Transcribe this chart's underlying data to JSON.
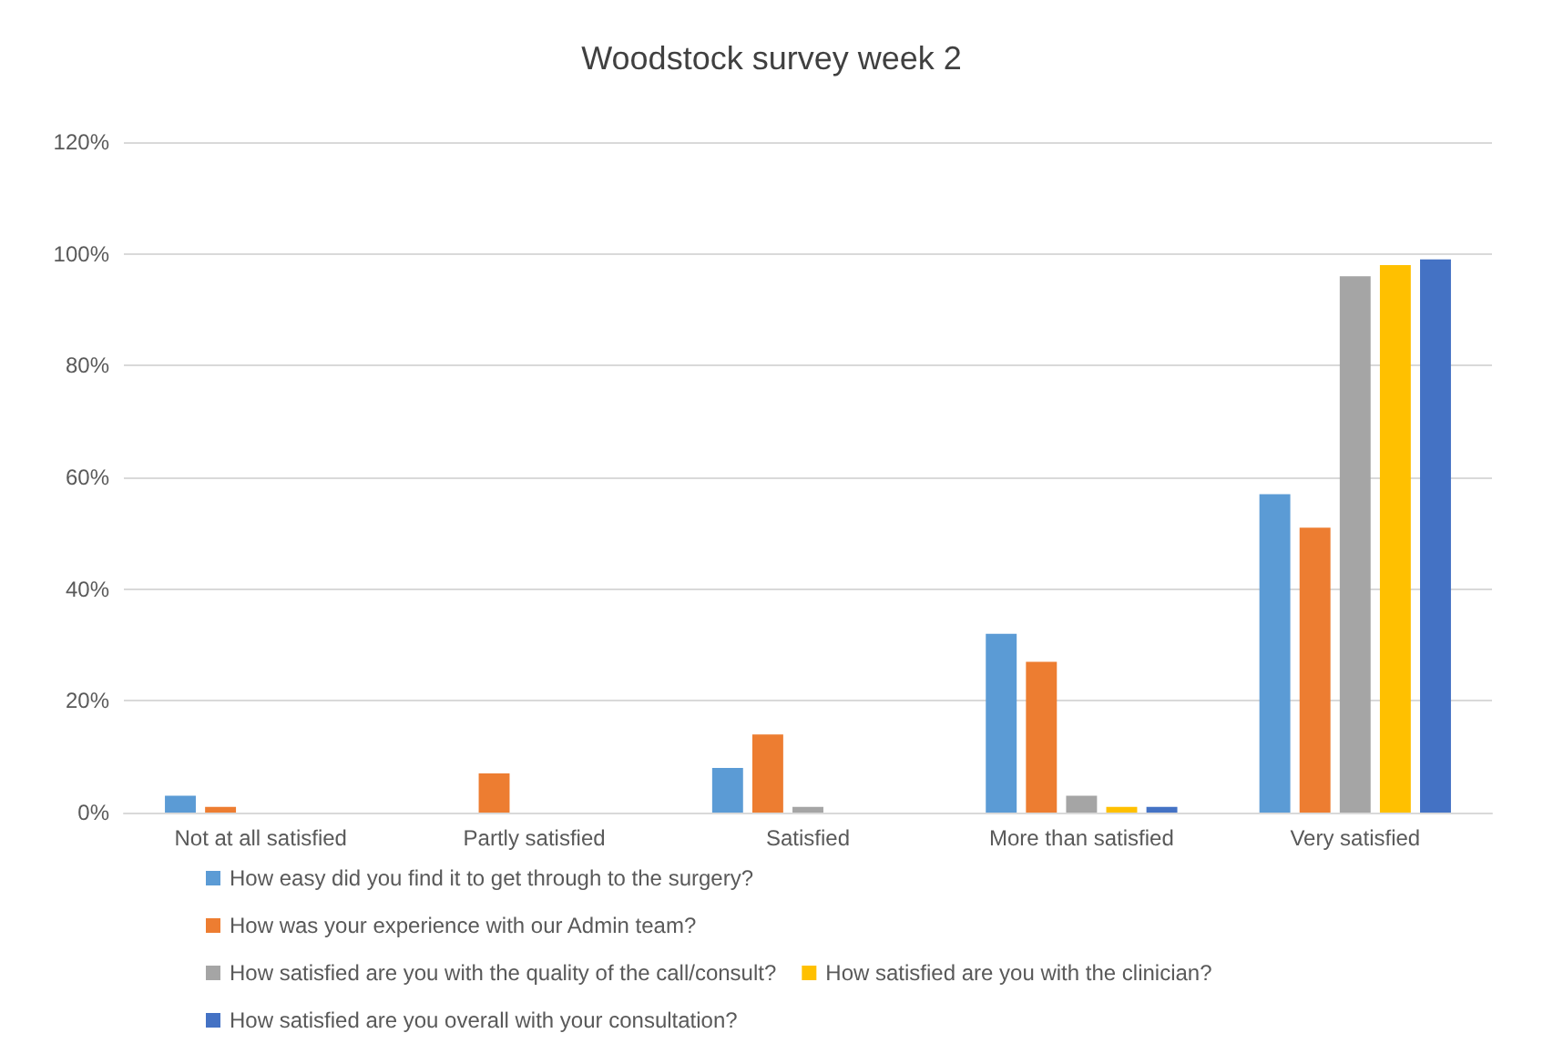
{
  "chart_data": {
    "type": "bar",
    "title": "Woodstock survey week 2",
    "categories": [
      "Not at all satisfied",
      "Partly satisfied",
      "Satisfied",
      "More than satisfied",
      "Very satisfied"
    ],
    "series": [
      {
        "name": "How easy did you find it to get through to the surgery?",
        "color": "#5b9bd5",
        "values": [
          3,
          0,
          8,
          32,
          57
        ]
      },
      {
        "name": "How was your experience with our Admin team?",
        "color": "#ed7d31",
        "values": [
          1,
          7,
          14,
          27,
          51
        ]
      },
      {
        "name": "How satisfied are you with the quality of the call/consult?",
        "color": "#a5a5a5",
        "values": [
          0,
          0,
          1,
          3,
          96
        ]
      },
      {
        "name": "How satisfied are you with the clinician?",
        "color": "#ffc000",
        "values": [
          0,
          0,
          0,
          1,
          98
        ]
      },
      {
        "name": "How satisfied are you overall with your consultation?",
        "color": "#4472c4",
        "values": [
          0,
          0,
          0,
          1,
          99
        ]
      }
    ],
    "ylim": [
      0,
      120
    ],
    "yticks": [
      {
        "value": 0,
        "label": "0%"
      },
      {
        "value": 20,
        "label": "20%"
      },
      {
        "value": 40,
        "label": "40%"
      },
      {
        "value": 60,
        "label": "60%"
      },
      {
        "value": 80,
        "label": "80%"
      },
      {
        "value": 100,
        "label": "100%"
      },
      {
        "value": 120,
        "label": "120%"
      }
    ],
    "grid": "y",
    "legend": "bottom"
  }
}
